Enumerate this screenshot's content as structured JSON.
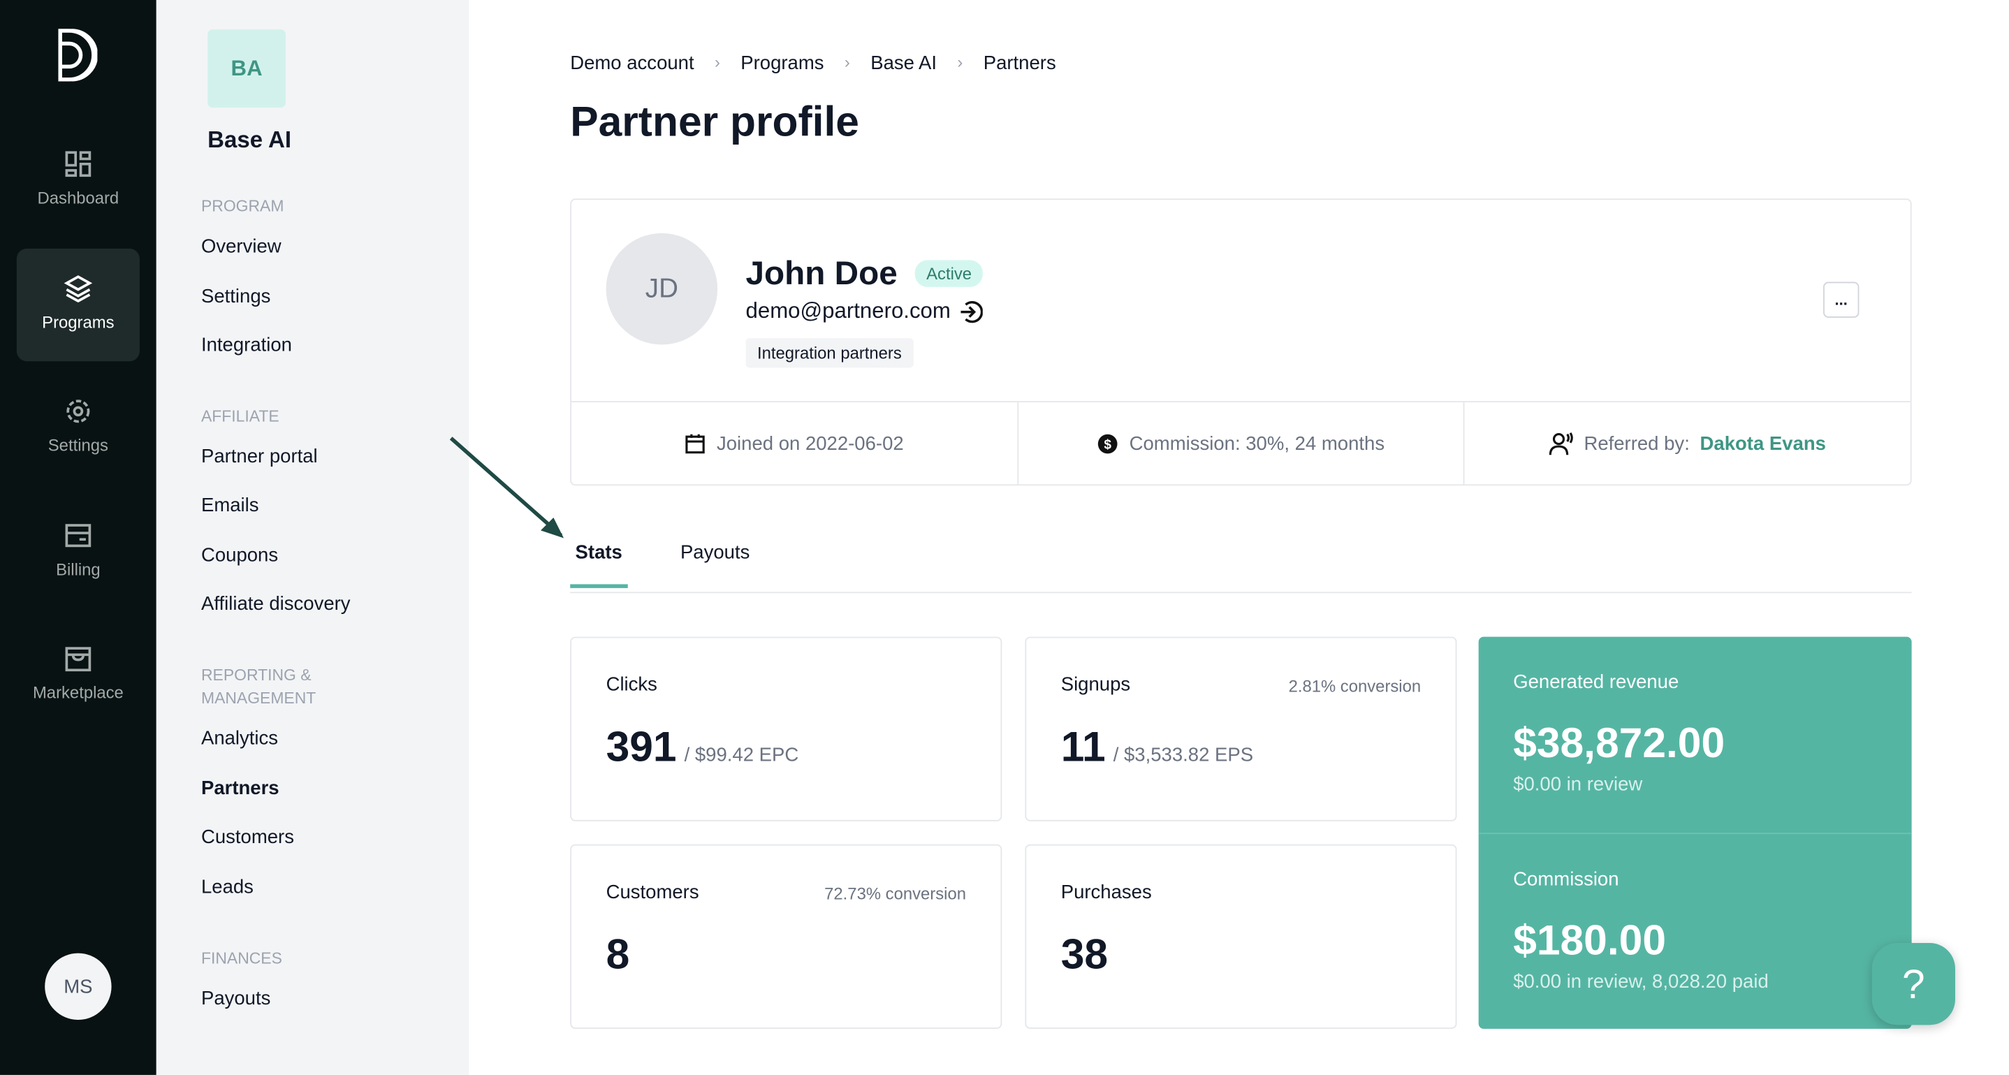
{
  "rail": {
    "items": [
      {
        "label": "Dashboard",
        "icon": "dashboard-icon"
      },
      {
        "label": "Programs",
        "icon": "layers-icon",
        "active": true
      },
      {
        "label": "Settings",
        "icon": "gear-icon"
      },
      {
        "label": "Billing",
        "icon": "billing-icon"
      },
      {
        "label": "Marketplace",
        "icon": "store-icon"
      }
    ],
    "user_initials": "MS"
  },
  "sidebar": {
    "program_initials": "BA",
    "program_name": "Base AI",
    "sections": [
      {
        "title": "PROGRAM",
        "items": [
          "Overview",
          "Settings",
          "Integration"
        ]
      },
      {
        "title": "AFFILIATE",
        "items": [
          "Partner portal",
          "Emails",
          "Coupons",
          "Affiliate discovery"
        ]
      },
      {
        "title": "REPORTING & MANAGEMENT",
        "items": [
          "Analytics",
          "Partners",
          "Customers",
          "Leads"
        ]
      },
      {
        "title": "FINANCES",
        "items": [
          "Payouts"
        ]
      }
    ],
    "active": "Partners"
  },
  "breadcrumb": [
    "Demo account",
    "Programs",
    "Base AI",
    "Partners"
  ],
  "page_title": "Partner profile",
  "partner": {
    "initials": "JD",
    "name": "John Doe",
    "status": "Active",
    "email": "demo@partnero.com",
    "tag": "Integration partners",
    "more": "...",
    "joined": "Joined on 2022-06-02",
    "commission": "Commission: 30%, 24 months",
    "referred_label": "Referred by:",
    "referred_by": "Dakota Evans"
  },
  "tabs": [
    "Stats",
    "Payouts"
  ],
  "stats": {
    "clicks": {
      "label": "Clicks",
      "value": "391",
      "sub": "/ $99.42 EPC"
    },
    "signups": {
      "label": "Signups",
      "conversion": "2.81% conversion",
      "value": "11",
      "sub": "/ $3,533.82 EPS"
    },
    "customers": {
      "label": "Customers",
      "conversion": "72.73% conversion",
      "value": "8"
    },
    "purchases": {
      "label": "Purchases",
      "value": "38"
    },
    "revenue": {
      "label": "Generated revenue",
      "value": "$38,872.00",
      "sub": "$0.00 in review"
    },
    "commission": {
      "label": "Commission",
      "value": "$180.00",
      "sub": "$0.00 in review, 8,028.20 paid"
    }
  },
  "help": "?",
  "colors": {
    "accent": "#55b5a3",
    "rail": "#081212",
    "link": "#3e9684"
  }
}
